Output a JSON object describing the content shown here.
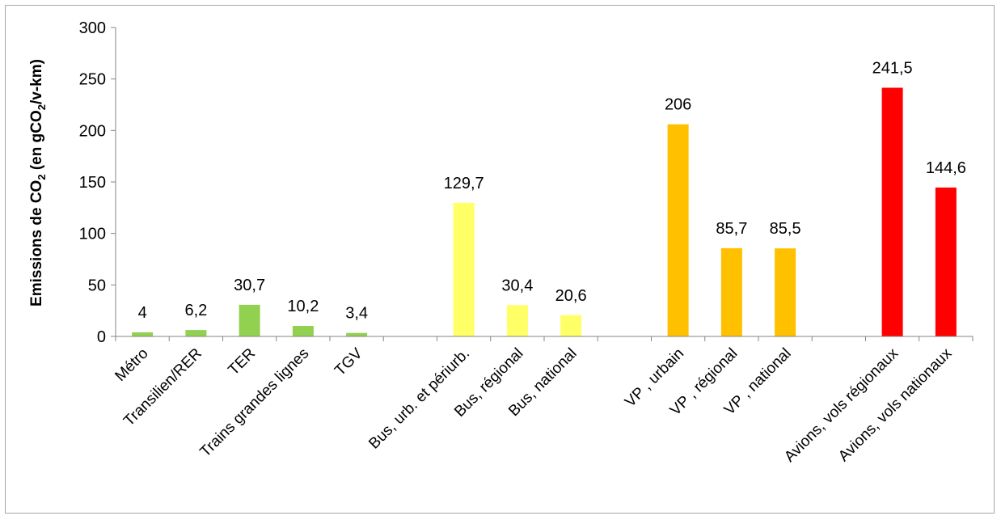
{
  "chart_data": {
    "type": "bar",
    "ylabel_parts": [
      "Emissions de CO",
      "2",
      " (en gCO",
      "2",
      "/v-km)"
    ],
    "ylim": [
      0,
      300
    ],
    "yticks": [
      "0",
      "50",
      "100",
      "150",
      "200",
      "250",
      "300"
    ],
    "grid": false,
    "categories": [
      "Métro",
      "Transilien/RER",
      "TER",
      "Trains grandes lignes",
      "TGV",
      "",
      "Bus, urb. et périurb.",
      "Bus, régional",
      "Bus, national",
      "",
      "VP , urbain",
      "VP , régional",
      "VP , national",
      "",
      "Avions, vols régionaux",
      "Avions, vols nationaux"
    ],
    "values": [
      4,
      6.2,
      30.7,
      10.2,
      3.4,
      null,
      129.7,
      30.4,
      20.6,
      null,
      206,
      85.7,
      85.5,
      null,
      241.5,
      144.6
    ],
    "data_labels": [
      "4",
      "6,2",
      "30,7",
      "10,2",
      "3,4",
      "",
      "129,7",
      "30,4",
      "20,6",
      "",
      "206",
      "85,7",
      "85,5",
      "",
      "241,5",
      "144,6"
    ],
    "colors": [
      "#92d050",
      "#92d050",
      "#92d050",
      "#92d050",
      "#92d050",
      "",
      "#ffff66",
      "#ffff66",
      "#ffff66",
      "",
      "#ffc000",
      "#ffc000",
      "#ffc000",
      "",
      "#ff0000",
      "#ff0000"
    ]
  }
}
